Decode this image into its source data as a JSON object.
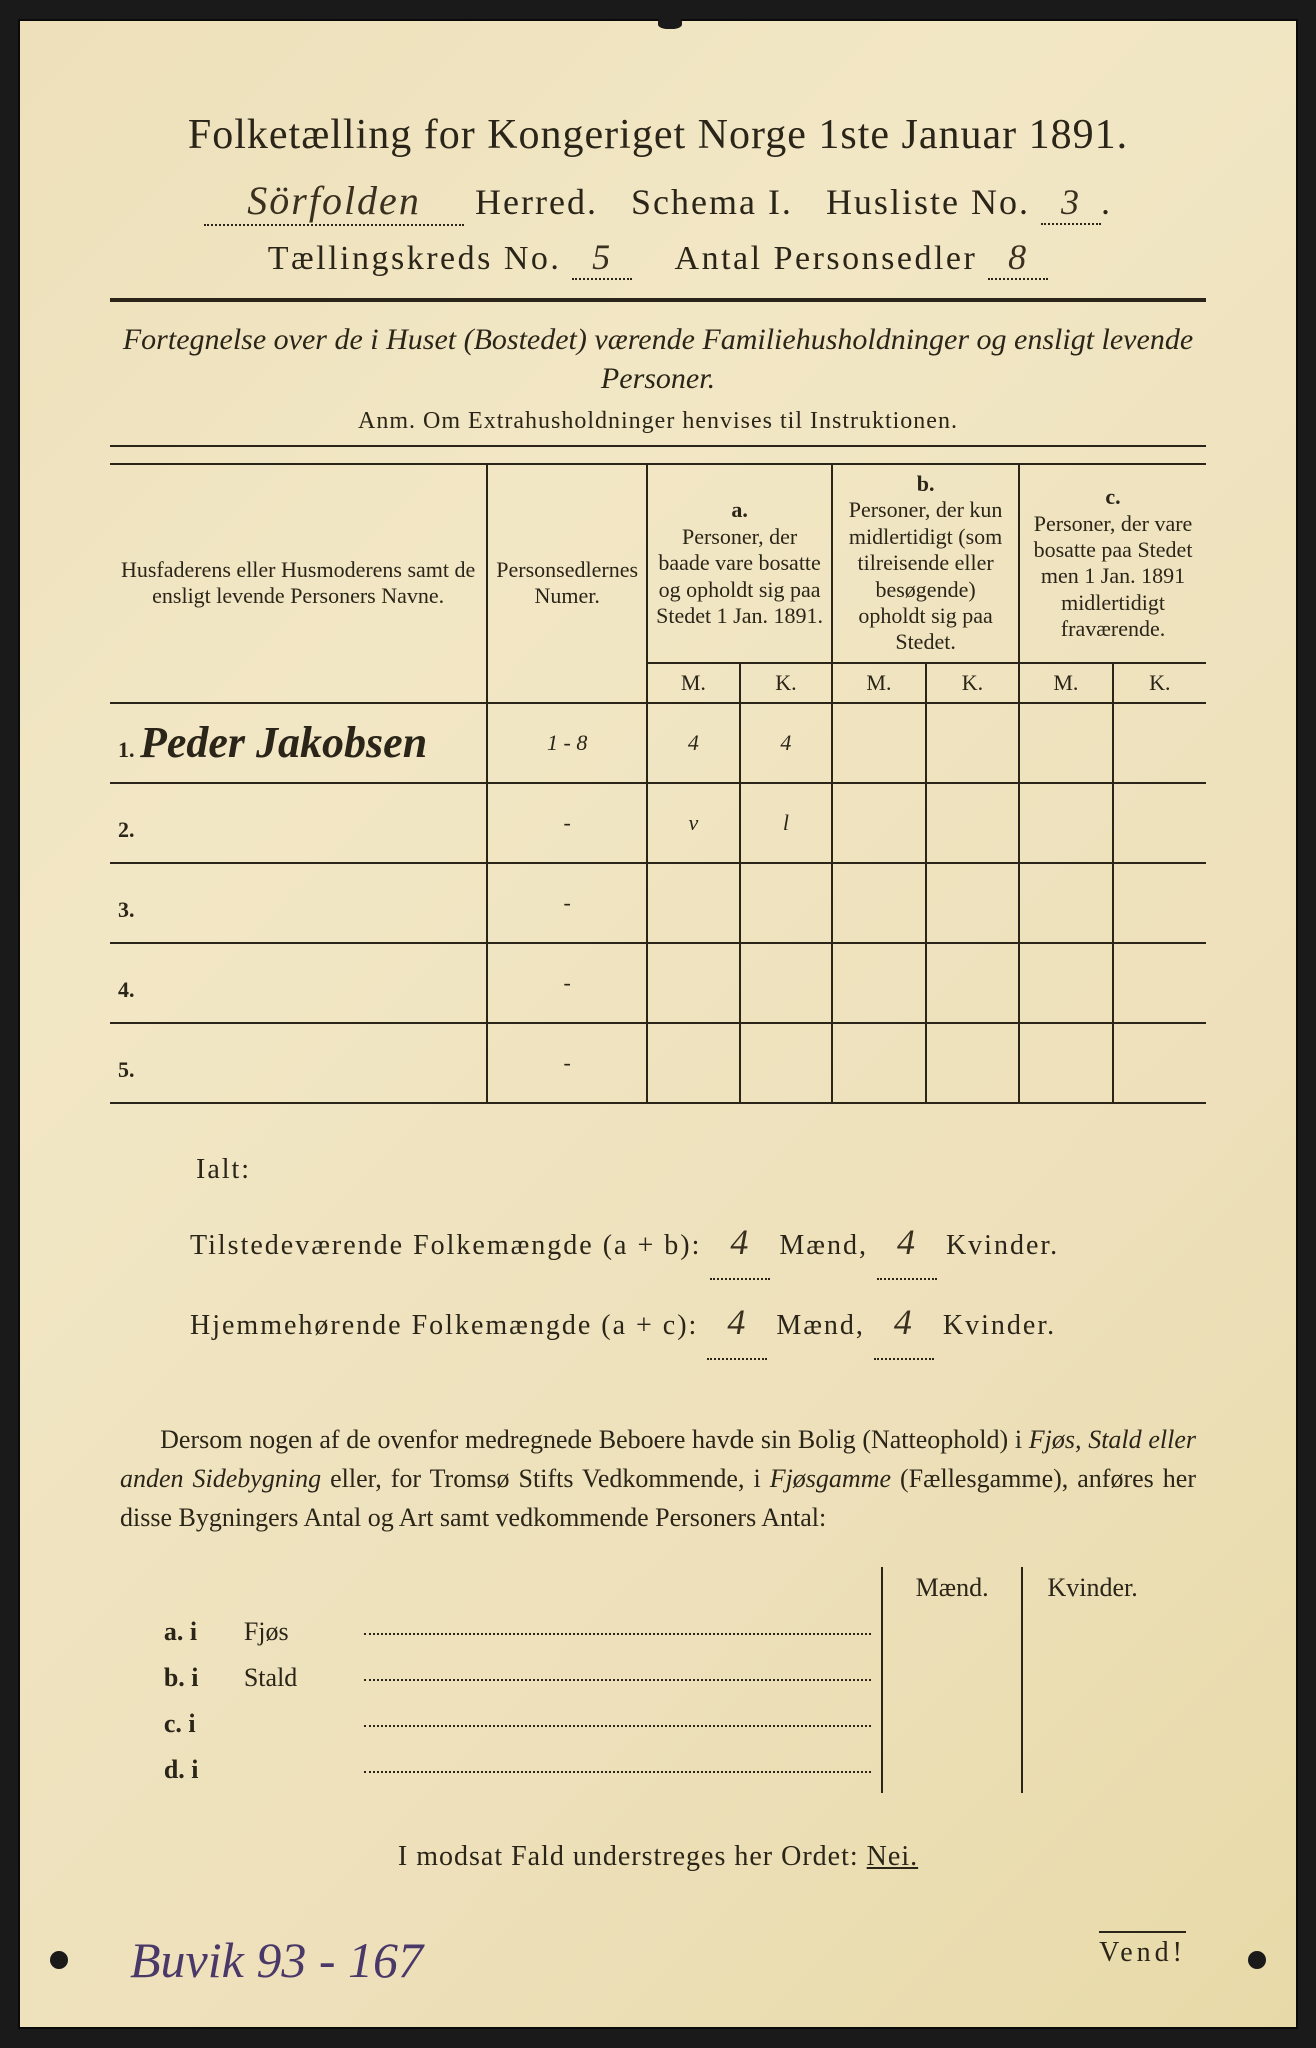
{
  "title": "Folketælling for Kongeriget Norge 1ste Januar 1891.",
  "header": {
    "herred_hand": "Sörfolden",
    "herred_label": "Herred.",
    "schema_label": "Schema I.",
    "husliste_label": "Husliste No.",
    "husliste_no": "3",
    "kreds_label": "Tællingskreds No.",
    "kreds_no": "5",
    "antal_label": "Antal Personsedler",
    "antal_no": "8"
  },
  "subtitle": "Fortegnelse over de i Huset (Bostedet) værende Familiehusholdninger og ensligt levende Personer.",
  "anm": "Anm. Om Extrahusholdninger henvises til Instruktionen.",
  "table": {
    "col_name": "Husfaderens eller Husmoderens samt de ensligt levende Personers Navne.",
    "col_num": "Personsedlernes Numer.",
    "col_a_head": "a.",
    "col_a": "Personer, der baade vare bosatte og opholdt sig paa Stedet 1 Jan. 1891.",
    "col_b_head": "b.",
    "col_b": "Personer, der kun midlertidigt (som tilreisende eller besøgende) opholdt sig paa Stedet.",
    "col_c_head": "c.",
    "col_c": "Personer, der vare bosatte paa Stedet men 1 Jan. 1891 midlertidigt fraværende.",
    "m": "M.",
    "k": "K.",
    "rows": [
      {
        "n": "1.",
        "name": "Peder Jakobsen",
        "num": "1 - 8",
        "a_m": "4",
        "a_k": "4",
        "b_m": "",
        "b_k": "",
        "c_m": "",
        "c_k": ""
      },
      {
        "n": "2.",
        "name": "",
        "num": "-",
        "a_m": "v",
        "a_k": "l",
        "b_m": "",
        "b_k": "",
        "c_m": "",
        "c_k": ""
      },
      {
        "n": "3.",
        "name": "",
        "num": "-",
        "a_m": "",
        "a_k": "",
        "b_m": "",
        "b_k": "",
        "c_m": "",
        "c_k": ""
      },
      {
        "n": "4.",
        "name": "",
        "num": "-",
        "a_m": "",
        "a_k": "",
        "b_m": "",
        "b_k": "",
        "c_m": "",
        "c_k": ""
      },
      {
        "n": "5.",
        "name": "",
        "num": "-",
        "a_m": "",
        "a_k": "",
        "b_m": "",
        "b_k": "",
        "c_m": "",
        "c_k": ""
      }
    ]
  },
  "summary": {
    "ialt": "Ialt:",
    "tilstede_label": "Tilstedeværende Folkemængde (a + b):",
    "hjemme_label": "Hjemmehørende Folkemængde (a + c):",
    "maend": "Mænd,",
    "kvinder": "Kvinder.",
    "tilstede_m": "4",
    "tilstede_k": "4",
    "hjemme_m": "4",
    "hjemme_k": "4"
  },
  "para_text": "Dersom nogen af de ovenfor medregnede Beboere havde sin Bolig (Natteophold) i Fjøs, Stald eller anden Sidebygning eller, for Tromsø Stifts Vedkommende, i Fjøsgamme (Fællesgamme), anføres her disse Bygningers Antal og Art samt vedkommende Personers Antal:",
  "bygning": {
    "maend": "Mænd.",
    "kvinder": "Kvinder.",
    "rows": [
      {
        "l": "a.  i",
        "name": "Fjøs"
      },
      {
        "l": "b.  i",
        "name": "Stald"
      },
      {
        "l": "c.  i",
        "name": ""
      },
      {
        "l": "d.  i",
        "name": ""
      }
    ]
  },
  "nei_line": "I modsat Fald understreges her Ordet:",
  "nei": "Nei.",
  "bottom_hand": "Buvik 93 - 167",
  "vend": "Vend!",
  "colors": {
    "paper": "#f0e4c0",
    "ink": "#2a2518",
    "hand_purple": "#4a3868"
  }
}
